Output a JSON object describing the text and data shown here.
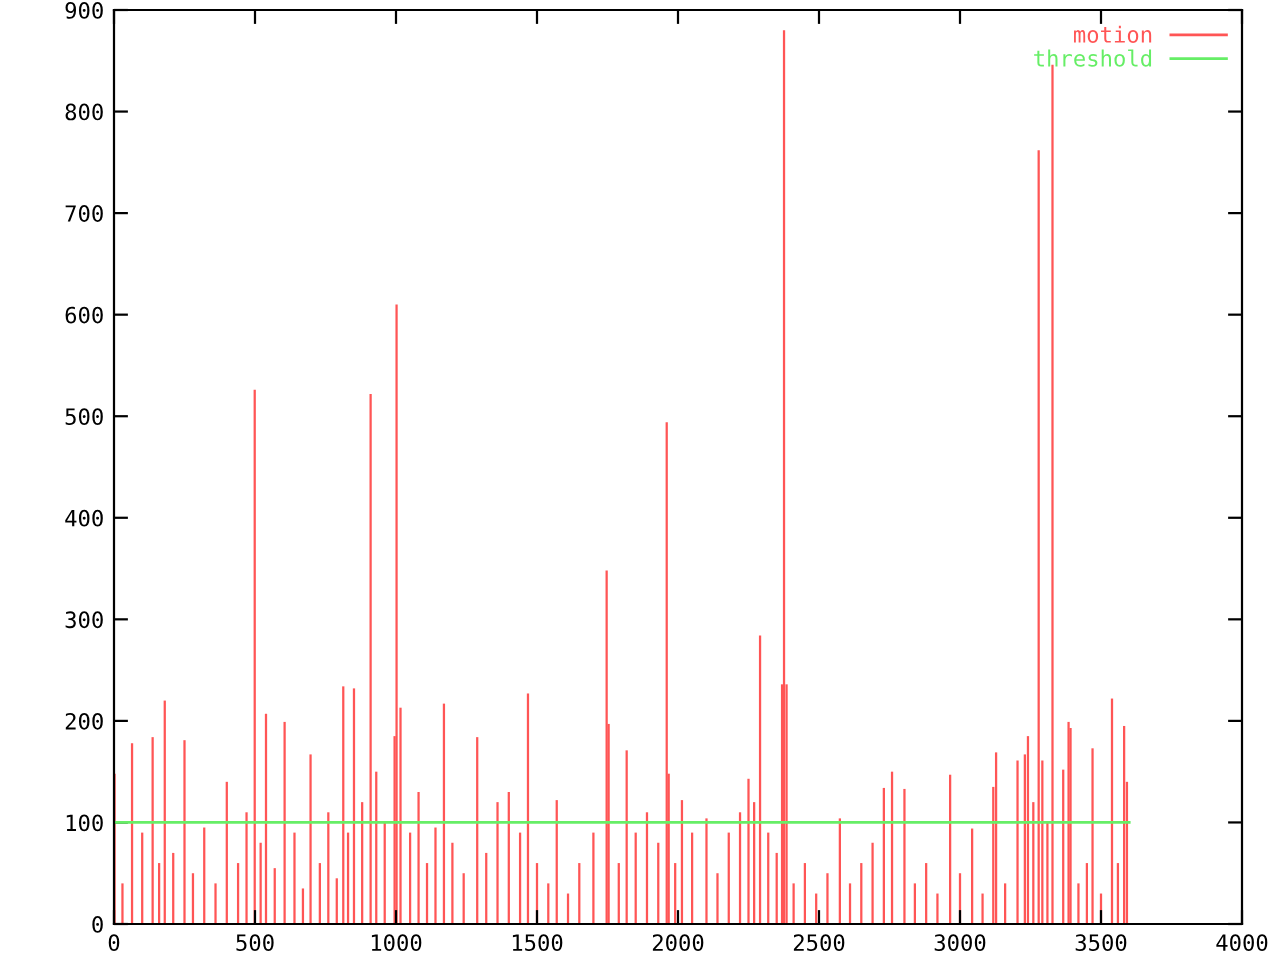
{
  "chart_data": {
    "type": "bar",
    "x": [
      2,
      30,
      64,
      100,
      137,
      160,
      180,
      210,
      250,
      280,
      320,
      360,
      400,
      440,
      470,
      499,
      520,
      539,
      570,
      605,
      640,
      670,
      697,
      730,
      760,
      790,
      813,
      830,
      851,
      880,
      910,
      930,
      960,
      995,
      1002,
      1016,
      1050,
      1080,
      1110,
      1140,
      1170,
      1200,
      1240,
      1288,
      1320,
      1360,
      1400,
      1440,
      1468,
      1500,
      1540,
      1570,
      1610,
      1650,
      1700,
      1747,
      1754,
      1790,
      1818,
      1850,
      1890,
      1930,
      1960,
      1967,
      1990,
      2014,
      2050,
      2101,
      2140,
      2180,
      2220,
      2250,
      2270,
      2291,
      2320,
      2350,
      2369,
      2376,
      2385,
      2410,
      2450,
      2490,
      2530,
      2574,
      2610,
      2650,
      2690,
      2730,
      2759,
      2803,
      2840,
      2880,
      2920,
      2965,
      3000,
      3043,
      3080,
      3118,
      3128,
      3160,
      3204,
      3230,
      3241,
      3260,
      3279,
      3292,
      3310,
      3328,
      3366,
      3385,
      3392,
      3420,
      3450,
      3470,
      3500,
      3539,
      3560,
      3582,
      3592
    ],
    "series": [
      {
        "name": "motion",
        "color": "#ff5555",
        "values": [
          148,
          40,
          178,
          90,
          184,
          60,
          220,
          70,
          181,
          50,
          95,
          40,
          140,
          60,
          110,
          526,
          80,
          207,
          55,
          199,
          90,
          35,
          167,
          60,
          110,
          45,
          234,
          90,
          232,
          120,
          522,
          150,
          100,
          185,
          610,
          213,
          90,
          130,
          60,
          95,
          217,
          80,
          50,
          184,
          70,
          120,
          130,
          90,
          227,
          60,
          40,
          122,
          30,
          60,
          90,
          348,
          197,
          60,
          171,
          90,
          110,
          80,
          494,
          148,
          60,
          122,
          90,
          104,
          50,
          90,
          110,
          143,
          120,
          284,
          90,
          70,
          236,
          880,
          236,
          40,
          60,
          30,
          50,
          104,
          40,
          60,
          80,
          134,
          150,
          133,
          40,
          60,
          30,
          147,
          50,
          94,
          30,
          135,
          169,
          40,
          161,
          167,
          185,
          120,
          762,
          161,
          100,
          846,
          152,
          199,
          193,
          40,
          60,
          173,
          30,
          222,
          60,
          195,
          140
        ]
      },
      {
        "name": "threshold",
        "type": "line",
        "color": "#66ee66",
        "x": [
          0,
          3600
        ],
        "values": [
          100,
          100
        ]
      }
    ],
    "xlim": [
      0,
      4000
    ],
    "xticks": [
      0,
      500,
      1000,
      1500,
      2000,
      2500,
      3000,
      3500,
      4000
    ],
    "ylim": [
      0,
      900
    ],
    "yticks": [
      0,
      100,
      200,
      300,
      400,
      500,
      600,
      700,
      800,
      900
    ],
    "grid": false,
    "legend": "top right"
  }
}
